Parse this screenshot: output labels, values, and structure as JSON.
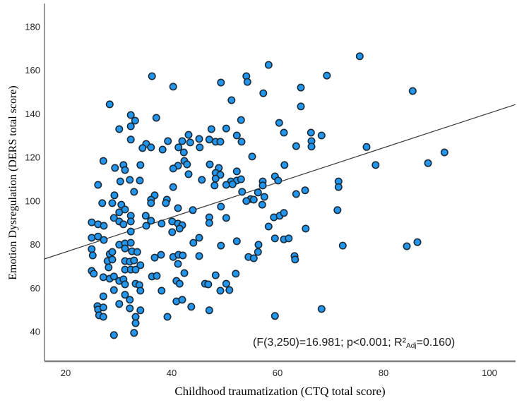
{
  "chart_data": {
    "type": "scatter",
    "title": "",
    "xlabel": "Childhood traumatization (CTQ total score)",
    "ylabel": "Emotion Dysregulation (DERS total score)",
    "x_ticks": [
      20,
      40,
      60,
      80,
      100
    ],
    "y_ticks": [
      40,
      60,
      80,
      100,
      120,
      140,
      160,
      180
    ],
    "xlim": [
      15.9,
      105.3
    ],
    "ylim": [
      27.6,
      192.3
    ],
    "grid": false,
    "legend": "none",
    "annotation": {
      "full": "(F(3,250)=16.981; p<0.001; R²Adj=0.160)",
      "pre": "(F(3,250)=16.981; p<0.001; R²",
      "sub": "Adj",
      "post": "=0.160)"
    },
    "regression_line": {
      "x1": 15.9,
      "y1": 73.3,
      "x2": 104.9,
      "y2": 144.3
    },
    "colors": {
      "point_fill": "#2296EC",
      "point_stroke": "#1B2A38",
      "axis": "#808080",
      "line": "#3a3a3a",
      "text": "#000000"
    },
    "points": [
      [
        36.3,
        157.3
      ],
      [
        40.3,
        152.5
      ],
      [
        28.3,
        144.4
      ],
      [
        32.3,
        139.5
      ],
      [
        33.1,
        136.9
      ],
      [
        37.1,
        138.2
      ],
      [
        30.1,
        133.0
      ],
      [
        32.3,
        134.3
      ],
      [
        32.3,
        128.2
      ],
      [
        35.2,
        126.2
      ],
      [
        34.5,
        124.3
      ],
      [
        36.1,
        124.6
      ],
      [
        38.3,
        123.6
      ],
      [
        39.3,
        127.5
      ],
      [
        41.3,
        124.6
      ],
      [
        42.0,
        127.5
      ],
      [
        43.2,
        130.4
      ],
      [
        42.3,
        122.3
      ],
      [
        43.5,
        126.9
      ],
      [
        45.2,
        128.5
      ],
      [
        45.3,
        124.6
      ],
      [
        41.2,
        116.2
      ],
      [
        42.4,
        118.4
      ],
      [
        42.9,
        116.8
      ],
      [
        43.2,
        112.3
      ],
      [
        40.3,
        114.9
      ],
      [
        27.1,
        118.4
      ],
      [
        29.3,
        115.2
      ],
      [
        30.9,
        116.5
      ],
      [
        31.2,
        114.2
      ],
      [
        34.1,
        116.5
      ],
      [
        30.3,
        109.0
      ],
      [
        32.1,
        109.7
      ],
      [
        34.0,
        109.4
      ],
      [
        26.1,
        107.4
      ],
      [
        40.3,
        106.4
      ],
      [
        32.9,
        104.2
      ],
      [
        29.2,
        102.6
      ],
      [
        36.8,
        102.6
      ],
      [
        39.1,
        100.6
      ],
      [
        36.1,
        100.6
      ],
      [
        45.7,
        109.7
      ],
      [
        75.5,
        166.5
      ],
      [
        58.3,
        162.5
      ],
      [
        54.1,
        157.3
      ],
      [
        54.3,
        154.7
      ],
      [
        49.3,
        154.4
      ],
      [
        69.3,
        157.6
      ],
      [
        64.4,
        152.1
      ],
      [
        57.3,
        149.5
      ],
      [
        51.3,
        146.3
      ],
      [
        64.4,
        143.4
      ],
      [
        53.1,
        137.2
      ],
      [
        50.3,
        133.3
      ],
      [
        47.5,
        133.0
      ],
      [
        60.3,
        135.9
      ],
      [
        61.2,
        131.4
      ],
      [
        47.1,
        128.2
      ],
      [
        48.3,
        127.2
      ],
      [
        49.2,
        127.2
      ],
      [
        52.3,
        130.1
      ],
      [
        53.2,
        127.2
      ],
      [
        66.3,
        131.4
      ],
      [
        68.3,
        130.1
      ],
      [
        66.4,
        127.5
      ],
      [
        66.4,
        125.0
      ],
      [
        63.5,
        125.2
      ],
      [
        76.8,
        124.8
      ],
      [
        55.2,
        120.4
      ],
      [
        47.2,
        116.8
      ],
      [
        61.3,
        116.5
      ],
      [
        48.9,
        115.2
      ],
      [
        48.3,
        112.9
      ],
      [
        49.2,
        112.0
      ],
      [
        48.3,
        110.3
      ],
      [
        52.3,
        113.6
      ],
      [
        51.2,
        109.0
      ],
      [
        52.3,
        109.4
      ],
      [
        53.1,
        110.0
      ],
      [
        50.3,
        107.4
      ],
      [
        48.1,
        107.1
      ],
      [
        51.5,
        107.7
      ],
      [
        59.5,
        111.3
      ],
      [
        60.1,
        109.4
      ],
      [
        57.2,
        109.0
      ],
      [
        57.2,
        107.1
      ],
      [
        53.3,
        104.2
      ],
      [
        56.3,
        103.9
      ],
      [
        57.5,
        101.9
      ],
      [
        54.9,
        100.9
      ],
      [
        55.5,
        100.6
      ],
      [
        63.5,
        103.2
      ],
      [
        65.2,
        104.9
      ],
      [
        71.5,
        109.0
      ],
      [
        71.5,
        106.4
      ],
      [
        85.5,
        150.5
      ],
      [
        78.5,
        116.5
      ],
      [
        88.4,
        117.4
      ],
      [
        91.5,
        122.3
      ],
      [
        26.9,
        99.0
      ],
      [
        28.8,
        99.0
      ],
      [
        30.5,
        98.3
      ],
      [
        36.1,
        99.0
      ],
      [
        38.9,
        99.0
      ],
      [
        41.2,
        96.7
      ],
      [
        44.0,
        95.8
      ],
      [
        30.1,
        94.8
      ],
      [
        31.2,
        96.1
      ],
      [
        32.3,
        93.2
      ],
      [
        29.1,
        92.2
      ],
      [
        30.1,
        90.6
      ],
      [
        30.9,
        89.3
      ],
      [
        32.3,
        90.6
      ],
      [
        24.9,
        90.2
      ],
      [
        26.1,
        89.3
      ],
      [
        27.2,
        88.6
      ],
      [
        35.1,
        93.2
      ],
      [
        36.1,
        90.9
      ],
      [
        35.2,
        88.6
      ],
      [
        38.1,
        89.6
      ],
      [
        40.1,
        90.6
      ],
      [
        41.2,
        89.6
      ],
      [
        42.0,
        88.9
      ],
      [
        40.1,
        85.7
      ],
      [
        41.5,
        87.3
      ],
      [
        32.3,
        86.0
      ],
      [
        24.9,
        83.1
      ],
      [
        26.1,
        83.7
      ],
      [
        27.2,
        82.1
      ],
      [
        30.1,
        79.9
      ],
      [
        31.2,
        80.5
      ],
      [
        32.3,
        80.8
      ],
      [
        31.2,
        78.2
      ],
      [
        32.5,
        76.9
      ],
      [
        33.5,
        76.6
      ],
      [
        24.9,
        77.9
      ],
      [
        25.1,
        75.0
      ],
      [
        28.3,
        75.6
      ],
      [
        28.8,
        76.6
      ],
      [
        27.9,
        72.4
      ],
      [
        28.8,
        73.1
      ],
      [
        31.2,
        72.4
      ],
      [
        32.1,
        72.1
      ],
      [
        32.9,
        72.7
      ],
      [
        34.1,
        70.5
      ],
      [
        28.1,
        69.5
      ],
      [
        31.2,
        68.5
      ],
      [
        32.3,
        68.5
      ],
      [
        33.2,
        68.5
      ],
      [
        24.9,
        67.9
      ],
      [
        25.3,
        66.6
      ],
      [
        27.1,
        65.0
      ],
      [
        28.3,
        64.3
      ],
      [
        29.1,
        65.3
      ],
      [
        30.1,
        63.3
      ],
      [
        30.9,
        64.0
      ],
      [
        31.2,
        61.7
      ],
      [
        33.2,
        62.0
      ],
      [
        33.9,
        61.4
      ],
      [
        34.1,
        58.8
      ],
      [
        29.1,
        59.1
      ],
      [
        27.1,
        56.2
      ],
      [
        31.2,
        56.9
      ],
      [
        32.1,
        54.6
      ],
      [
        30.1,
        52.7
      ],
      [
        32.1,
        50.7
      ],
      [
        34.1,
        49.8
      ],
      [
        26.0,
        51.7
      ],
      [
        26.1,
        50.1
      ],
      [
        27.1,
        51.1
      ],
      [
        26.3,
        47.5
      ],
      [
        27.1,
        46.8
      ],
      [
        33.2,
        46.8
      ],
      [
        33.2,
        43.9
      ],
      [
        32.9,
        39.4
      ],
      [
        29.1,
        38.4
      ],
      [
        36.3,
        65.3
      ],
      [
        37.2,
        65.6
      ],
      [
        36.8,
        74.0
      ],
      [
        38.0,
        75.3
      ],
      [
        40.3,
        74.3
      ],
      [
        41.3,
        75.3
      ],
      [
        42.1,
        75.0
      ],
      [
        41.2,
        71.1
      ],
      [
        42.4,
        66.9
      ],
      [
        40.9,
        63.3
      ],
      [
        41.5,
        62.0
      ],
      [
        38.1,
        58.8
      ],
      [
        40.9,
        53.9
      ],
      [
        42.0,
        54.6
      ],
      [
        39.2,
        46.8
      ],
      [
        43.7,
        51.4
      ],
      [
        44.1,
        80.8
      ],
      [
        45.2,
        83.1
      ],
      [
        46.3,
        62.0
      ],
      [
        45.2,
        74.7
      ],
      [
        49.3,
        97.4
      ],
      [
        54.1,
        100.0
      ],
      [
        57.1,
        98.3
      ],
      [
        47.1,
        92.5
      ],
      [
        47.1,
        89.9
      ],
      [
        50.3,
        92.2
      ],
      [
        71.3,
        95.8
      ],
      [
        58.3,
        88.3
      ],
      [
        59.3,
        92.5
      ],
      [
        60.4,
        93.2
      ],
      [
        61.2,
        94.5
      ],
      [
        65.3,
        87.3
      ],
      [
        59.5,
        82.8
      ],
      [
        61.2,
        82.4
      ],
      [
        62.1,
        82.8
      ],
      [
        72.3,
        79.5
      ],
      [
        49.3,
        79.5
      ],
      [
        52.3,
        81.5
      ],
      [
        56.4,
        79.9
      ],
      [
        56.3,
        76.6
      ],
      [
        54.5,
        74.3
      ],
      [
        55.5,
        73.7
      ],
      [
        63.2,
        74.7
      ],
      [
        63.3,
        73.1
      ],
      [
        48.3,
        65.9
      ],
      [
        52.1,
        66.6
      ],
      [
        50.3,
        62.0
      ],
      [
        46.9,
        61.7
      ],
      [
        49.2,
        58.8
      ],
      [
        50.9,
        59.1
      ],
      [
        47.1,
        49.8
      ],
      [
        59.5,
        47.2
      ],
      [
        68.3,
        50.4
      ],
      [
        84.4,
        79.2
      ],
      [
        86.4,
        81.1
      ]
    ]
  }
}
